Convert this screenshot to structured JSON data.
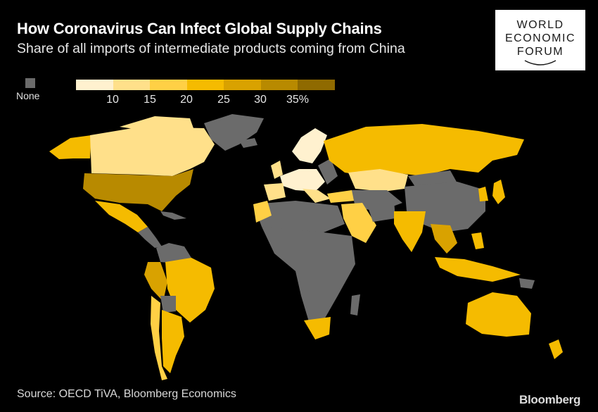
{
  "header": {
    "title": "How Coronavirus Can Infect Global Supply Chains",
    "subtitle": "Share of all imports of intermediate products coming from China"
  },
  "logo": {
    "line1": "WORLD",
    "line2": "ECONOMIC",
    "line3": "FORUM"
  },
  "legend": {
    "none_label": "None",
    "none_color": "#6b6b6b",
    "colors": [
      "#fff1cf",
      "#ffe08a",
      "#ffd045",
      "#f5bb00",
      "#d9a200",
      "#b88a00",
      "#8f6a00"
    ],
    "ticks": [
      "10",
      "15",
      "20",
      "25",
      "30",
      "35%"
    ]
  },
  "colors": {
    "background": "#000000",
    "no_data": "#6b6b6b"
  },
  "footer": {
    "source": "Source: OECD TiVA, Bloomberg Economics",
    "brand": "Bloomberg"
  }
}
